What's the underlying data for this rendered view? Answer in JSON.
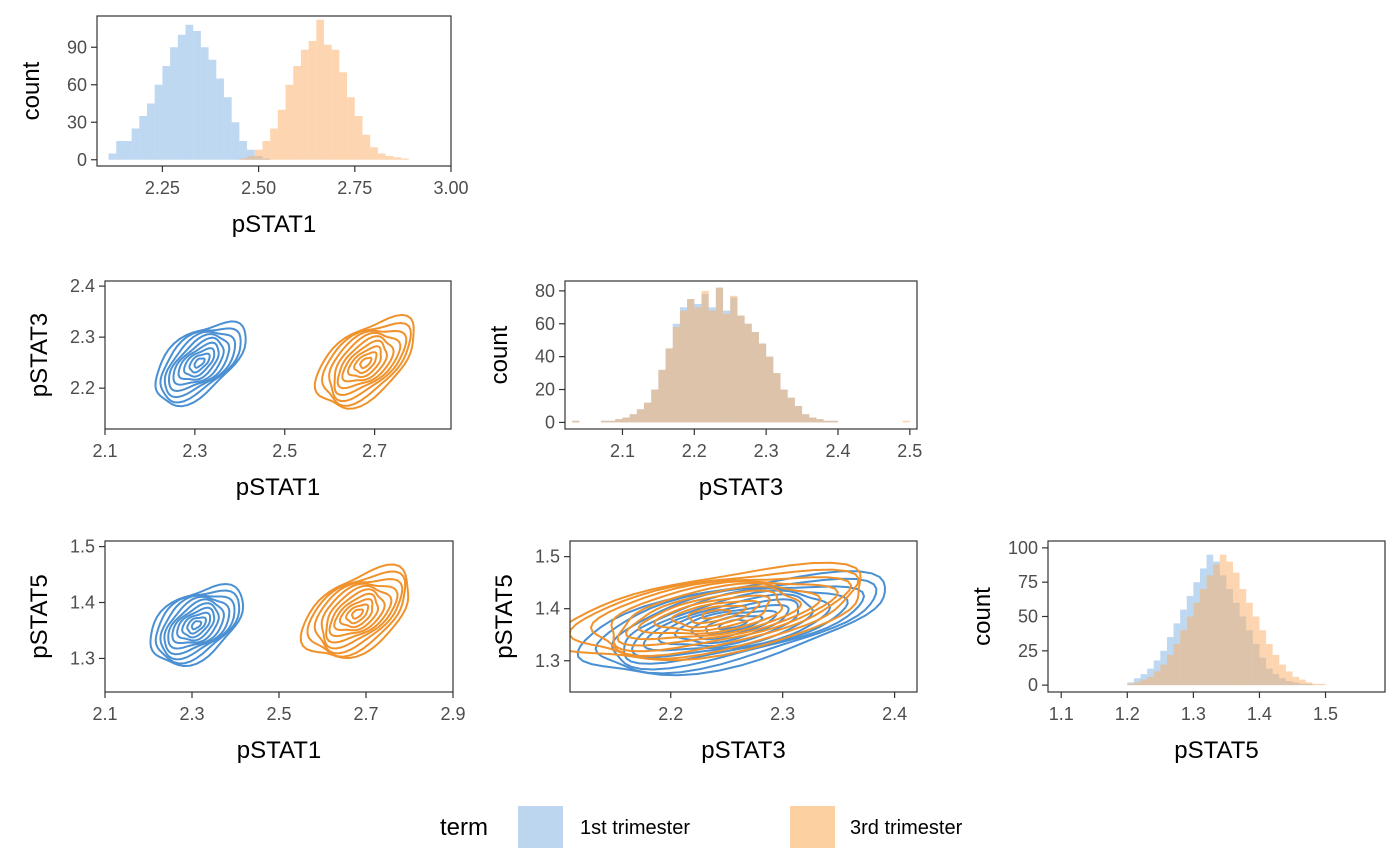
{
  "colors": {
    "first_fill": "#7fb2e3",
    "third_fill": "#fbae63",
    "first_line": "#4a90d2",
    "third_line": "#f0922b",
    "axis": "#333333"
  },
  "legend": {
    "title": "term",
    "items": [
      {
        "label": "1st trimester",
        "color": "#bcd6ef"
      },
      {
        "label": "3rd trimester",
        "color": "#fdd0a1"
      }
    ]
  },
  "chart_data": [
    {
      "id": "hist-pstat1",
      "type": "bar",
      "title": "",
      "xlabel": "pSTAT1",
      "ylabel": "count",
      "xlim": [
        2.08,
        3.0
      ],
      "ylim": [
        -5,
        115
      ],
      "xticks": [
        2.25,
        2.5,
        2.75,
        3.0
      ],
      "xtick_labels": [
        "2.25",
        "2.50",
        "2.75",
        "3.00"
      ],
      "yticks": [
        0,
        30,
        60,
        90
      ],
      "yticks_labels": [
        "0",
        "30",
        "60",
        "90"
      ],
      "bin_width": 0.02,
      "series": [
        {
          "name": "1st trimester",
          "x_start": 2.11,
          "values": [
            5,
            15,
            15,
            25,
            35,
            45,
            60,
            75,
            90,
            100,
            108,
            103,
            90,
            80,
            65,
            50,
            30,
            15,
            8,
            3,
            1
          ]
        },
        {
          "name": "3rd trimester",
          "x_start": 2.45,
          "values": [
            1,
            3,
            8,
            15,
            25,
            40,
            60,
            75,
            88,
            95,
            112,
            92,
            88,
            70,
            50,
            35,
            20,
            10,
            5,
            3,
            2,
            1
          ]
        }
      ]
    },
    {
      "id": "hist-pstat3",
      "type": "bar",
      "title": "",
      "xlabel": "pSTAT3",
      "ylabel": "count",
      "xlim": [
        2.02,
        2.51
      ],
      "ylim": [
        -4,
        86
      ],
      "xticks": [
        2.1,
        2.2,
        2.3,
        2.4,
        2.5
      ],
      "xtick_labels": [
        "2.1",
        "2.2",
        "2.3",
        "2.4",
        "2.5"
      ],
      "yticks": [
        0,
        20,
        40,
        60,
        80
      ],
      "yticks_labels": [
        "0",
        "20",
        "40",
        "60",
        "80"
      ],
      "bin_width": 0.01,
      "series": [
        {
          "name": "1st trimester",
          "x_start": 2.03,
          "values": [
            1,
            0,
            0,
            0,
            1,
            1,
            2,
            3,
            5,
            8,
            12,
            20,
            32,
            45,
            60,
            70,
            75,
            72,
            78,
            70,
            82,
            68,
            76,
            65,
            60,
            55,
            48,
            40,
            30,
            20,
            15,
            10,
            5,
            3,
            2,
            1,
            1,
            0,
            0,
            0,
            0,
            0,
            0,
            0,
            0,
            0,
            0
          ]
        },
        {
          "name": "3rd trimester",
          "x_start": 2.03,
          "values": [
            1,
            0,
            0,
            0,
            1,
            1,
            2,
            3,
            5,
            8,
            12,
            20,
            32,
            45,
            58,
            68,
            75,
            70,
            80,
            68,
            82,
            66,
            77,
            65,
            60,
            55,
            48,
            40,
            30,
            20,
            15,
            10,
            5,
            3,
            2,
            1,
            1,
            0,
            0,
            0,
            0,
            0,
            0,
            0,
            0,
            0,
            1
          ]
        }
      ]
    },
    {
      "id": "hist-pstat5",
      "type": "bar",
      "title": "",
      "xlabel": "pSTAT5",
      "ylabel": "count",
      "xlim": [
        1.08,
        1.59
      ],
      "ylim": [
        -5,
        105
      ],
      "xticks": [
        1.1,
        1.2,
        1.3,
        1.4,
        1.5
      ],
      "xtick_labels": [
        "1.1",
        "1.2",
        "1.3",
        "1.4",
        "1.5"
      ],
      "yticks": [
        0,
        25,
        50,
        75,
        100
      ],
      "yticks_labels": [
        "0",
        "25",
        "50",
        "75",
        "100"
      ],
      "bin_width": 0.01,
      "series": [
        {
          "name": "1st trimester",
          "x_start": 1.2,
          "values": [
            2,
            5,
            8,
            12,
            18,
            25,
            35,
            45,
            55,
            65,
            75,
            85,
            95,
            90,
            80,
            70,
            60,
            50,
            40,
            30,
            20,
            12,
            8,
            5,
            3,
            2,
            1,
            1,
            0,
            0
          ]
        },
        {
          "name": "3rd trimester",
          "x_start": 1.2,
          "values": [
            1,
            2,
            4,
            6,
            10,
            15,
            22,
            30,
            40,
            50,
            60,
            70,
            80,
            88,
            95,
            90,
            82,
            70,
            60,
            50,
            40,
            30,
            22,
            15,
            10,
            6,
            4,
            2,
            1,
            1
          ]
        }
      ]
    },
    {
      "id": "density-pstat1-pstat3",
      "type": "contour",
      "title": "",
      "xlabel": "pSTAT1",
      "ylabel": "pSTAT3",
      "xlim": [
        2.1,
        2.87
      ],
      "ylim": [
        2.12,
        2.41
      ],
      "xticks": [
        2.1,
        2.3,
        2.5,
        2.7
      ],
      "xtick_labels": [
        "2.1",
        "2.3",
        "2.5",
        "2.7"
      ],
      "yticks": [
        2.2,
        2.3,
        2.4
      ],
      "yticks_labels": [
        "2.2",
        "2.3",
        "2.4"
      ],
      "series": [
        {
          "name": "1st trimester",
          "center": [
            2.31,
            2.25
          ],
          "spread": [
            0.12,
            0.09
          ],
          "angle_deg": -40,
          "levels": 9
        },
        {
          "name": "3rd trimester",
          "center": [
            2.68,
            2.25
          ],
          "spread": [
            0.13,
            0.1
          ],
          "angle_deg": -40,
          "levels": 9
        }
      ]
    },
    {
      "id": "density-pstat1-pstat5",
      "type": "contour",
      "title": "",
      "xlabel": "pSTAT1",
      "ylabel": "pSTAT5",
      "xlim": [
        2.1,
        2.9
      ],
      "ylim": [
        1.24,
        1.51
      ],
      "xticks": [
        2.1,
        2.3,
        2.5,
        2.7,
        2.9
      ],
      "xtick_labels": [
        "2.1",
        "2.3",
        "2.5",
        "2.7",
        "2.9"
      ],
      "yticks": [
        1.3,
        1.4,
        1.5
      ],
      "yticks_labels": [
        "1.3",
        "1.4",
        "1.5"
      ],
      "series": [
        {
          "name": "1st trimester",
          "center": [
            2.31,
            1.36
          ],
          "spread": [
            0.12,
            0.09
          ],
          "angle_deg": -35,
          "levels": 10
        },
        {
          "name": "3rd trimester",
          "center": [
            2.68,
            1.38
          ],
          "spread": [
            0.14,
            0.1
          ],
          "angle_deg": -35,
          "levels": 10
        }
      ]
    },
    {
      "id": "density-pstat3-pstat5",
      "type": "contour",
      "title": "",
      "xlabel": "pSTAT3",
      "ylabel": "pSTAT5",
      "xlim": [
        2.11,
        2.42
      ],
      "ylim": [
        1.24,
        1.53
      ],
      "xticks": [
        2.2,
        2.3,
        2.4
      ],
      "xtick_labels": [
        "2.2",
        "2.3",
        "2.4"
      ],
      "yticks": [
        1.3,
        1.4,
        1.5
      ],
      "yticks_labels": [
        "1.3",
        "1.4",
        "1.5"
      ],
      "series": [
        {
          "name": "1st trimester",
          "center": [
            2.255,
            1.37
          ],
          "spread": [
            0.14,
            0.12
          ],
          "angle_deg": -12,
          "levels": 11
        },
        {
          "name": "3rd trimester",
          "center": [
            2.24,
            1.39
          ],
          "spread": [
            0.14,
            0.12
          ],
          "angle_deg": -10,
          "levels": 11
        }
      ]
    }
  ]
}
